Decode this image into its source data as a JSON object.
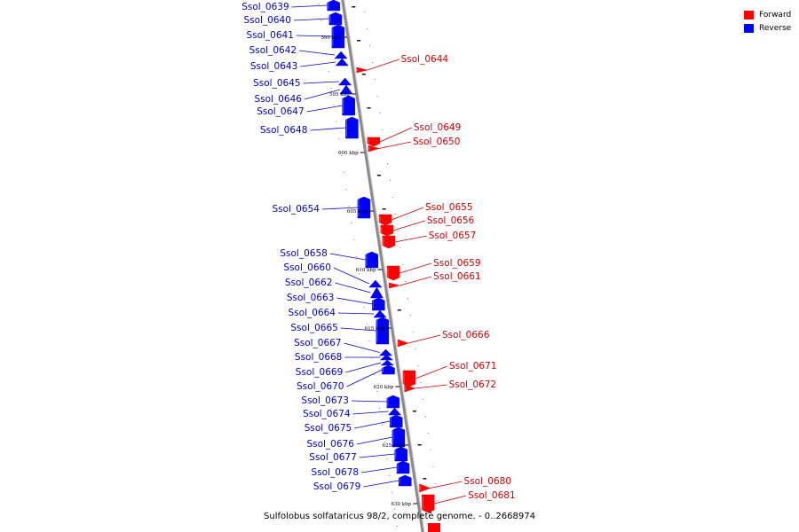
{
  "legend": {
    "forward": {
      "label": "Forward",
      "color": "#ff0000"
    },
    "reverse": {
      "label": "Reverse",
      "color": "#0000ff"
    }
  },
  "caption": "Sulfolobus solfataricus 98/2, complete genome. - 0..2668974",
  "colors": {
    "forward": "#ff0000",
    "reverse": "#0000ff",
    "label_forward": "#cc0000",
    "label_reverse": "#0000cc",
    "backbone": "#888888",
    "leader": "#3333cc"
  },
  "scale_marks": [
    "590 kbp",
    "595 kbp",
    "600 kbp",
    "605 kbp",
    "610 kbp",
    "615 kbp",
    "620 kbp",
    "625 kbp",
    "630 kbp"
  ],
  "genes": [
    {
      "name": "Ssol_0639",
      "strand": "reverse"
    },
    {
      "name": "Ssol_0640",
      "strand": "reverse"
    },
    {
      "name": "Ssol_0641",
      "strand": "reverse"
    },
    {
      "name": "Ssol_0642",
      "strand": "reverse"
    },
    {
      "name": "Ssol_0643",
      "strand": "reverse"
    },
    {
      "name": "Ssol_0644",
      "strand": "forward"
    },
    {
      "name": "Ssol_0645",
      "strand": "reverse"
    },
    {
      "name": "Ssol_0646",
      "strand": "reverse"
    },
    {
      "name": "Ssol_0647",
      "strand": "reverse"
    },
    {
      "name": "Ssol_0648",
      "strand": "reverse"
    },
    {
      "name": "Ssol_0649",
      "strand": "forward"
    },
    {
      "name": "Ssol_0650",
      "strand": "forward"
    },
    {
      "name": "Ssol_0654",
      "strand": "reverse"
    },
    {
      "name": "Ssol_0655",
      "strand": "forward"
    },
    {
      "name": "Ssol_0656",
      "strand": "forward"
    },
    {
      "name": "Ssol_0657",
      "strand": "forward"
    },
    {
      "name": "Ssol_0658",
      "strand": "reverse"
    },
    {
      "name": "Ssol_0659",
      "strand": "forward"
    },
    {
      "name": "Ssol_0660",
      "strand": "reverse"
    },
    {
      "name": "Ssol_0661",
      "strand": "forward"
    },
    {
      "name": "Ssol_0662",
      "strand": "reverse"
    },
    {
      "name": "Ssol_0663",
      "strand": "reverse"
    },
    {
      "name": "Ssol_0664",
      "strand": "reverse"
    },
    {
      "name": "Ssol_0665",
      "strand": "reverse"
    },
    {
      "name": "Ssol_0666",
      "strand": "forward"
    },
    {
      "name": "Ssol_0667",
      "strand": "reverse"
    },
    {
      "name": "Ssol_0668",
      "strand": "reverse"
    },
    {
      "name": "Ssol_0669",
      "strand": "reverse"
    },
    {
      "name": "Ssol_0670",
      "strand": "reverse"
    },
    {
      "name": "Ssol_0671",
      "strand": "forward"
    },
    {
      "name": "Ssol_0672",
      "strand": "forward"
    },
    {
      "name": "Ssol_0673",
      "strand": "reverse"
    },
    {
      "name": "Ssol_0674",
      "strand": "reverse"
    },
    {
      "name": "Ssol_0675",
      "strand": "reverse"
    },
    {
      "name": "Ssol_0676",
      "strand": "reverse"
    },
    {
      "name": "Ssol_0677",
      "strand": "reverse"
    },
    {
      "name": "Ssol_0678",
      "strand": "reverse"
    },
    {
      "name": "Ssol_0679",
      "strand": "reverse"
    },
    {
      "name": "Ssol_0680",
      "strand": "forward"
    },
    {
      "name": "Ssol_0681",
      "strand": "forward"
    }
  ]
}
